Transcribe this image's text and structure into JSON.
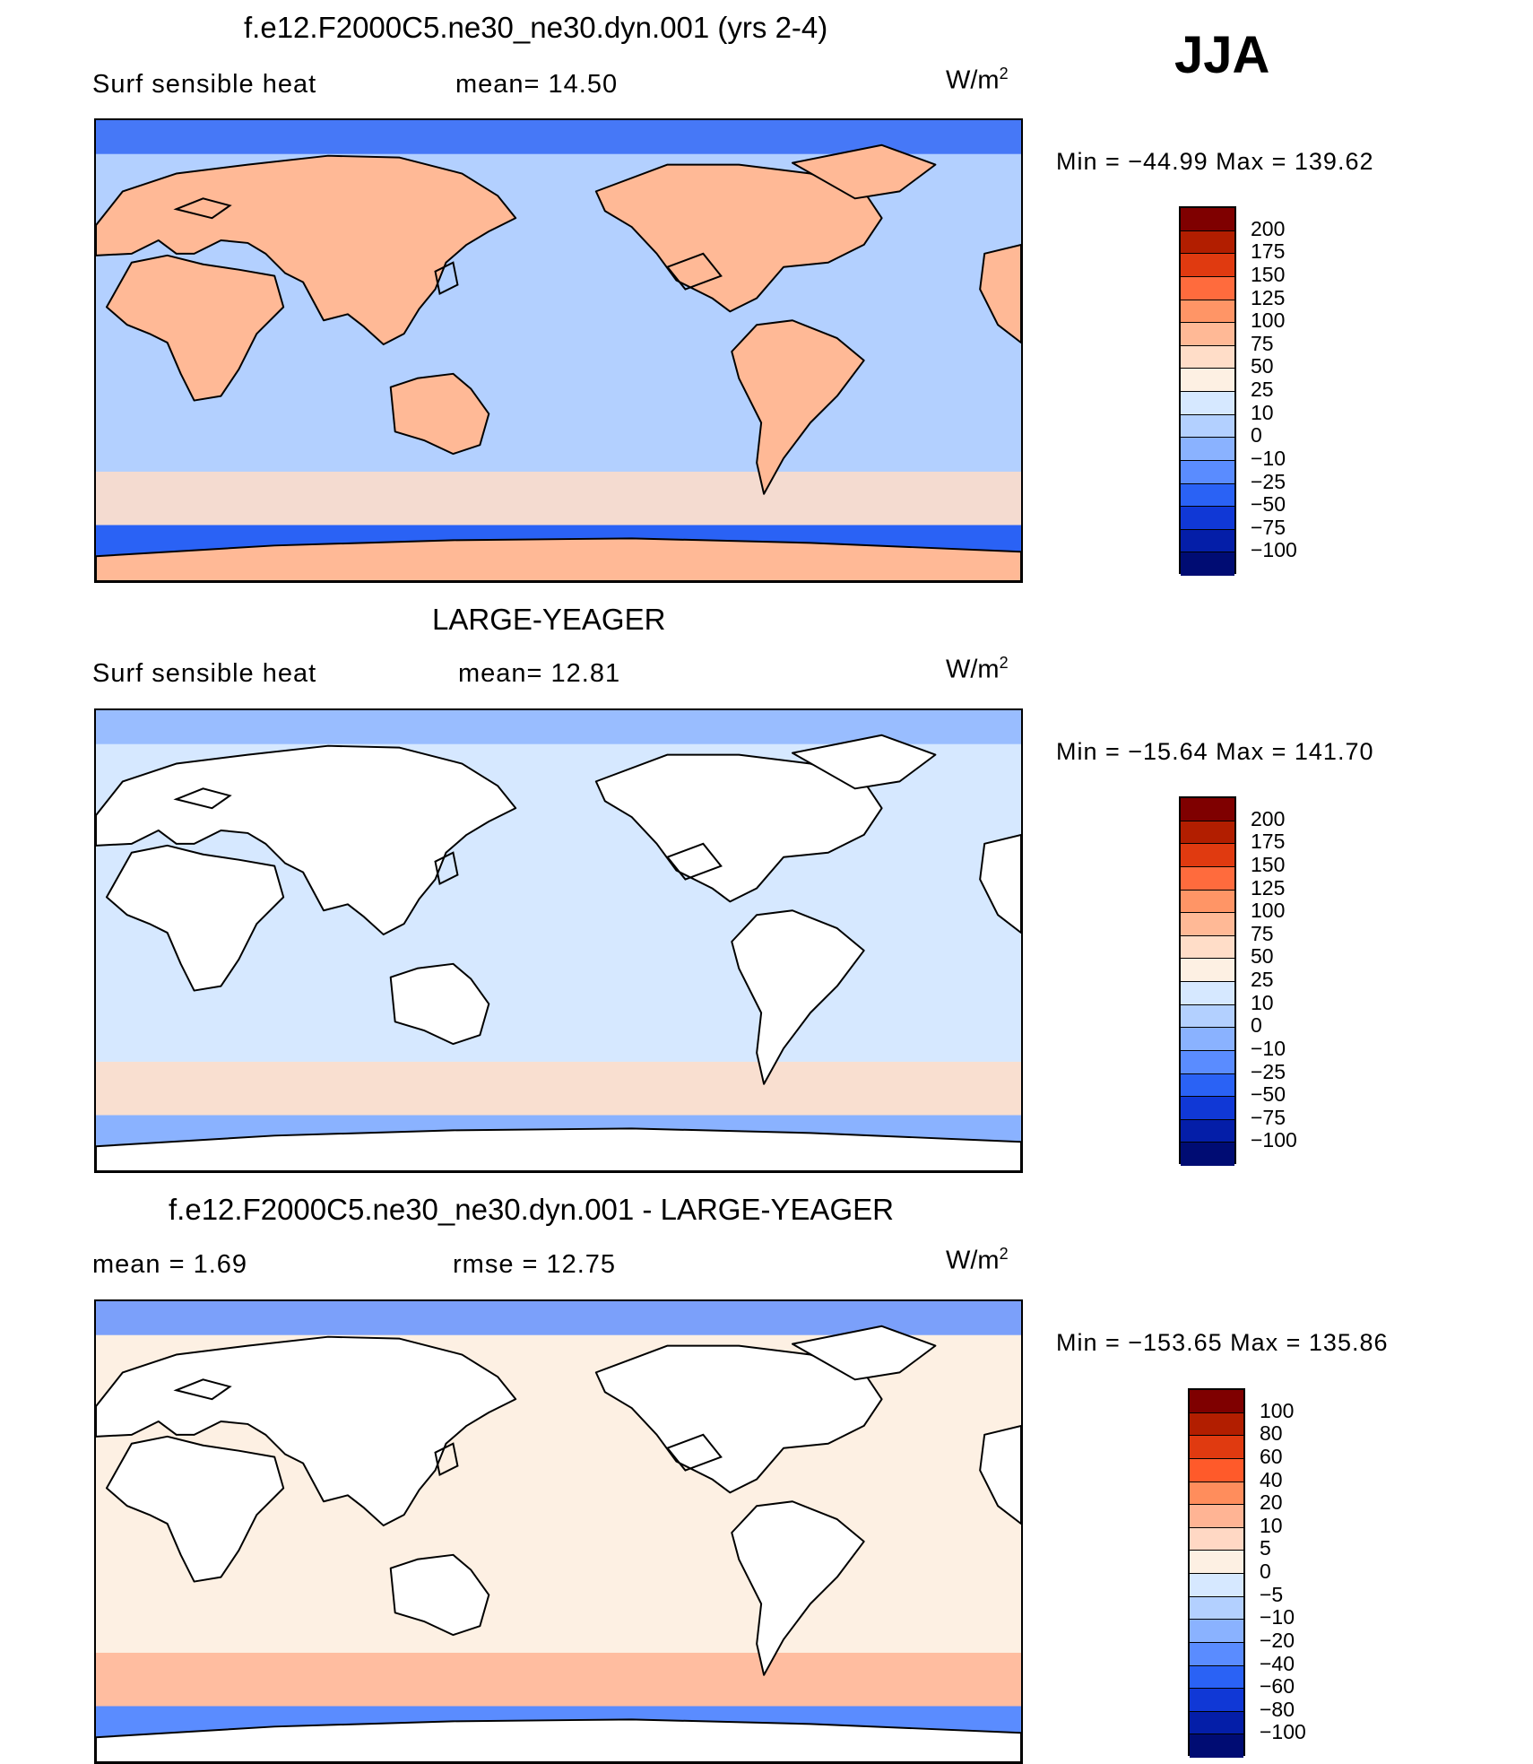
{
  "season": "JJA",
  "panels": [
    {
      "title": "f.e12.F2000C5.ne30_ne30.dyn.001 (yrs 2-4)",
      "left_label": "Surf  sensible  heat",
      "right_label": "mean=   14.50",
      "units": "W/m",
      "units_exp": "2",
      "minmax": "Min  =  −44.99  Max  =  139.62",
      "colorbar": {
        "levels": [
          "200",
          "175",
          "150",
          "125",
          "100",
          "75",
          "50",
          "25",
          "10",
          "0",
          "−10",
          "−25",
          "−50",
          "−75",
          "−100"
        ],
        "colors": [
          "#7f0000",
          "#b21e00",
          "#e03a10",
          "#ff6b3d",
          "#ff9566",
          "#ffb996",
          "#ffddc8",
          "#fdf0e3",
          "#d6e8ff",
          "#b3d0ff",
          "#8ab2ff",
          "#5a8cff",
          "#2a62f5",
          "#1038d6",
          "#041ea8",
          "#000c73"
        ]
      },
      "field": {
        "ocean": "#b3d0ff",
        "land": "#ffb996",
        "polar": "#2a62f5",
        "band": "#ffddc8"
      }
    },
    {
      "title": "LARGE-YEAGER",
      "left_label": "Surf  sensible  heat",
      "right_label": "mean=   12.81",
      "units": "W/m",
      "units_exp": "2",
      "minmax": "Min  =  −15.64  Max  =  141.70",
      "colorbar": {
        "levels": [
          "200",
          "175",
          "150",
          "125",
          "100",
          "75",
          "50",
          "25",
          "10",
          "0",
          "−10",
          "−25",
          "−50",
          "−75",
          "−100"
        ],
        "colors": [
          "#7f0000",
          "#b21e00",
          "#e03a10",
          "#ff6b3d",
          "#ff9566",
          "#ffb996",
          "#ffddc8",
          "#fdf0e3",
          "#d6e8ff",
          "#b3d0ff",
          "#8ab2ff",
          "#5a8cff",
          "#2a62f5",
          "#1038d6",
          "#041ea8",
          "#000c73"
        ]
      },
      "field": {
        "ocean": "#d6e8ff",
        "land": "#ffffff",
        "polar": "#8ab2ff",
        "band": "#ffddc8"
      }
    },
    {
      "title": "f.e12.F2000C5.ne30_ne30.dyn.001 - LARGE-YEAGER",
      "left_label": "mean  =      1.69",
      "right_label": "rmse  =     12.75",
      "units": "W/m",
      "units_exp": "2",
      "minmax": "Min  =  −153.65  Max  =  135.86",
      "colorbar": {
        "levels": [
          "100",
          "80",
          "60",
          "40",
          "20",
          "10",
          "5",
          "0",
          "−5",
          "−10",
          "−20",
          "−40",
          "−60",
          "−80",
          "−100"
        ],
        "colors": [
          "#7f0000",
          "#b21e00",
          "#e03a10",
          "#ff5a2a",
          "#ff8d5c",
          "#ffb494",
          "#ffd8c4",
          "#fdf0e3",
          "#d6e8ff",
          "#b3d0ff",
          "#8ab2ff",
          "#5a8cff",
          "#2a62f5",
          "#1038d6",
          "#041ea8",
          "#000c73"
        ]
      },
      "field": {
        "ocean": "#fdf0e3",
        "land": "#ffffff",
        "polar": "#5a8cff",
        "band": "#ffb494"
      }
    }
  ]
}
